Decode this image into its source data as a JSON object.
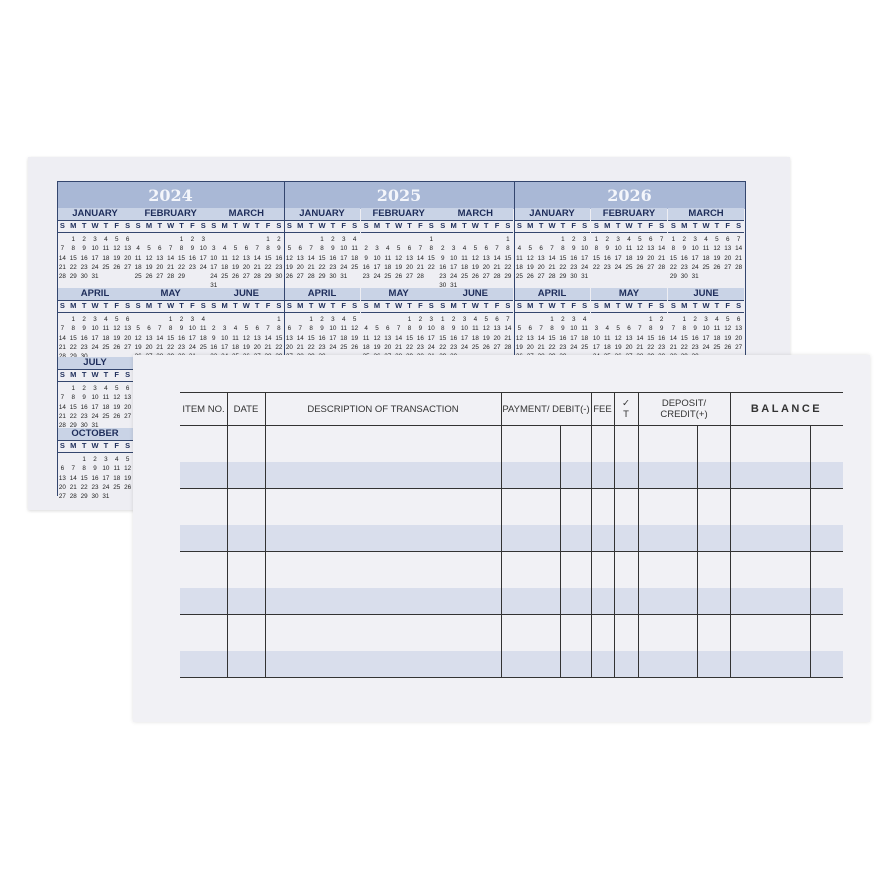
{
  "calendar": {
    "weekday_letters": [
      "S",
      "M",
      "T",
      "W",
      "T",
      "F",
      "S"
    ],
    "colors": {
      "band": "#a9b8d6",
      "month_header": "#c9d3e6",
      "text": "#1e2d5a"
    },
    "years": [
      {
        "year": "2024",
        "months": [
          {
            "name": "JANUARY",
            "first_weekday": 1,
            "days": 31
          },
          {
            "name": "FEBRUARY",
            "first_weekday": 4,
            "days": 29
          },
          {
            "name": "MARCH",
            "first_weekday": 5,
            "days": 31
          },
          {
            "name": "APRIL",
            "first_weekday": 1,
            "days": 30
          },
          {
            "name": "MAY",
            "first_weekday": 3,
            "days": 31
          },
          {
            "name": "JUNE",
            "first_weekday": 6,
            "days": 30
          }
        ]
      },
      {
        "year": "2025",
        "months": [
          {
            "name": "JANUARY",
            "first_weekday": 3,
            "days": 31
          },
          {
            "name": "FEBRUARY",
            "first_weekday": 6,
            "days": 28
          },
          {
            "name": "MARCH",
            "first_weekday": 6,
            "days": 31
          },
          {
            "name": "APRIL",
            "first_weekday": 2,
            "days": 30
          },
          {
            "name": "MAY",
            "first_weekday": 4,
            "days": 31
          },
          {
            "name": "JUNE",
            "first_weekday": 0,
            "days": 30
          }
        ]
      },
      {
        "year": "2026",
        "months": [
          {
            "name": "JANUARY",
            "first_weekday": 4,
            "days": 31
          },
          {
            "name": "FEBRUARY",
            "first_weekday": 0,
            "days": 28
          },
          {
            "name": "MARCH",
            "first_weekday": 0,
            "days": 31
          },
          {
            "name": "APRIL",
            "first_weekday": 3,
            "days": 30
          },
          {
            "name": "MAY",
            "first_weekday": 5,
            "days": 31
          },
          {
            "name": "JUNE",
            "first_weekday": 1,
            "days": 30
          }
        ]
      }
    ],
    "extra_months_2024": [
      {
        "name": "JULY",
        "first_weekday": 1,
        "days": 31
      },
      {
        "name": "OCTOBER",
        "first_weekday": 2,
        "days": 31
      }
    ]
  },
  "register": {
    "headers": {
      "item_no": "ITEM NO.",
      "date": "DATE",
      "description": "DESCRIPTION OF TRANSACTION",
      "payment": "PAYMENT/ DEBIT(-)",
      "fee": "FEE",
      "check": "✓ T",
      "deposit": "DEPOSIT/ CREDIT(+)",
      "balance": "BALANCE"
    },
    "row_count": 4,
    "band_color": "#d9deec"
  }
}
